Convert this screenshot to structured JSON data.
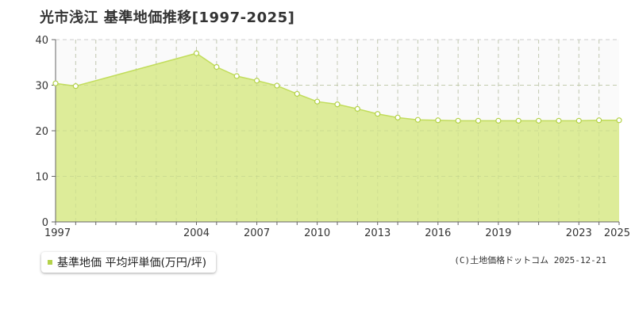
{
  "chart_data": {
    "type": "area",
    "title": "光市浅江 基準地価推移[1997-2025]",
    "xlabel": "",
    "ylabel": "",
    "ylim": [
      0,
      40
    ],
    "yticks": [
      "0",
      "10",
      "20",
      "30",
      "40"
    ],
    "xlim": [
      1997,
      2025
    ],
    "xticks": [
      "1997",
      "2004",
      "2007",
      "2010",
      "2013",
      "2016",
      "2019",
      "2023",
      "2025"
    ],
    "grid": true,
    "legend_position": "bottom-left",
    "series": [
      {
        "name": "基準地価 平均坪単価(万円/坪)",
        "x": [
          1997,
          1998,
          2004,
          2005,
          2006,
          2007,
          2008,
          2009,
          2010,
          2011,
          2012,
          2013,
          2014,
          2015,
          2016,
          2017,
          2018,
          2019,
          2020,
          2021,
          2022,
          2023,
          2024,
          2025
        ],
        "values": [
          30.4,
          29.8,
          37.0,
          34.0,
          32.0,
          31.0,
          29.9,
          28.1,
          26.4,
          25.8,
          24.8,
          23.7,
          22.9,
          22.4,
          22.3,
          22.2,
          22.2,
          22.2,
          22.2,
          22.2,
          22.2,
          22.2,
          22.3,
          22.3
        ]
      }
    ]
  },
  "legend": {
    "label": "基準地価 平均坪単価(万円/坪)"
  },
  "footer": {
    "copyright": "(C)土地価格ドットコム 2025-12-21"
  },
  "colors": {
    "fill": "#dbeb94",
    "line": "#c2dd5c",
    "marker_fill": "#ffffff",
    "marker_stroke": "#b4d24a",
    "legend_swatch": "#b4d24a"
  }
}
